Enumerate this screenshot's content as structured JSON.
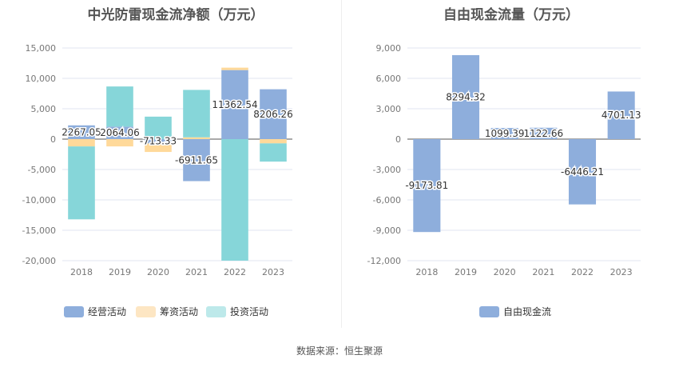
{
  "source": "数据来源：恒生聚源",
  "chart_data": [
    {
      "type": "bar",
      "stacked": true,
      "title": "中光防雷现金流净额（万元）",
      "categories": [
        "2018",
        "2019",
        "2020",
        "2021",
        "2022",
        "2023"
      ],
      "ylim": [
        -20000,
        15000
      ],
      "yticks": [
        15000,
        10000,
        5000,
        0,
        -5000,
        -10000,
        -15000,
        -20000
      ],
      "ytick_labels": [
        "15,000",
        "10,000",
        "5,000",
        "0",
        "-5,000",
        "-10,000",
        "-15,000",
        "-20,000"
      ],
      "grid": true,
      "legend_position": "bottom",
      "series": [
        {
          "name": "经营活动",
          "color": "#8eaedc",
          "legend_color": "#8eaedc",
          "values": [
            2267.05,
            2064.06,
            -713.33,
            -6911.65,
            11362.54,
            8206.26
          ],
          "labels": [
            "2267.05",
            "2064.06",
            "-713.33",
            "-6911.65",
            "11362.54",
            "8206.26"
          ]
        },
        {
          "name": "筹资活动",
          "color": "#ffd99a",
          "legend_color": "#fde6c3",
          "values": [
            -1200,
            -1200,
            -1400,
            300,
            400,
            -700
          ]
        },
        {
          "name": "投资活动",
          "color": "#86d6d9",
          "legend_color": "#bde9ea",
          "values": [
            -12000,
            6600,
            3700,
            7800,
            -20000,
            -3000
          ]
        }
      ]
    },
    {
      "type": "bar",
      "title": "自由现金流量（万元）",
      "categories": [
        "2018",
        "2019",
        "2020",
        "2021",
        "2022",
        "2023"
      ],
      "ylim": [
        -12000,
        9000
      ],
      "yticks": [
        9000,
        6000,
        3000,
        0,
        -3000,
        -6000,
        -9000,
        -12000
      ],
      "ytick_labels": [
        "9,000",
        "6,000",
        "3,000",
        "0",
        "-3,000",
        "-6,000",
        "-9,000",
        "-12,000"
      ],
      "grid": true,
      "legend_position": "bottom",
      "series": [
        {
          "name": "自由现金流",
          "color": "#8eaedc",
          "legend_color": "#8eaedc",
          "values": [
            -9173.81,
            8294.32,
            1099.39,
            1122.66,
            -6446.21,
            4701.13
          ],
          "labels": [
            "-9173.81",
            "8294.32",
            "1099.39",
            "1122.66",
            "-6446.21",
            "4701.13"
          ]
        }
      ]
    }
  ]
}
